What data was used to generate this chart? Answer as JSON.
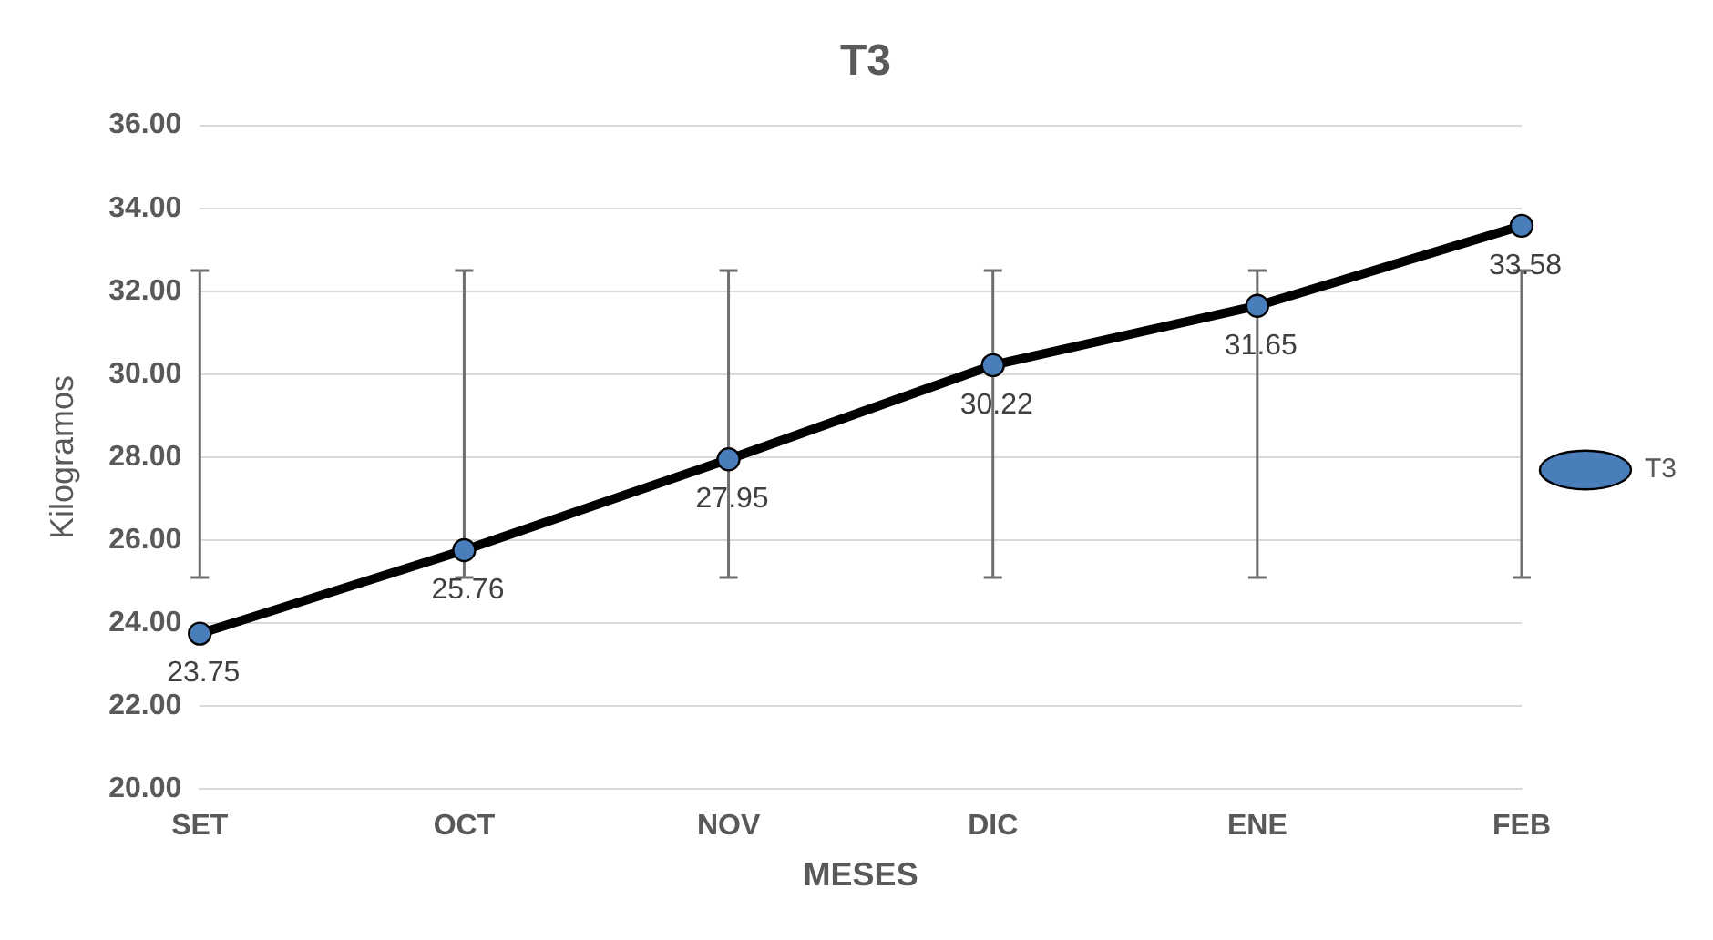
{
  "chart_data": {
    "type": "line",
    "title": "T3",
    "xlabel": "MESES",
    "ylabel": "Kilogramos",
    "categories": [
      "SET",
      "OCT",
      "NOV",
      "DIC",
      "ENE",
      "FEB"
    ],
    "series": [
      {
        "name": "T3",
        "color": "#4a7ebb",
        "values": [
          23.75,
          25.76,
          27.95,
          30.22,
          31.65,
          33.58
        ],
        "errors": [
          [
            25.1,
            32.5
          ],
          [
            25.1,
            32.5
          ],
          [
            25.1,
            32.5
          ],
          [
            25.1,
            32.5
          ],
          [
            25.1,
            32.5
          ],
          [
            25.1,
            32.5
          ]
        ]
      }
    ],
    "ylim": [
      20,
      36
    ],
    "yticks": [
      {
        "value": 20,
        "label": "20.00"
      },
      {
        "value": 22,
        "label": "22.00"
      },
      {
        "value": 24,
        "label": "24.00"
      },
      {
        "value": 26,
        "label": "26.00"
      },
      {
        "value": 28,
        "label": "28.00"
      },
      {
        "value": 30,
        "label": "30.00"
      },
      {
        "value": 32,
        "label": "32.00"
      },
      {
        "value": 34,
        "label": "34.00"
      },
      {
        "value": 36,
        "label": "36.00"
      }
    ],
    "grid": "y",
    "legend": "right",
    "marker": "circle",
    "line_style": "solid",
    "data_labels": true
  }
}
